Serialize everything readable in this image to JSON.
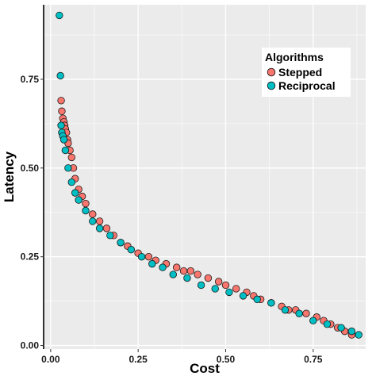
{
  "chart_data": {
    "type": "scatter",
    "xlabel": "Cost",
    "ylabel": "Latency",
    "xlim": [
      -0.02,
      0.9
    ],
    "ylim": [
      -0.01,
      0.96
    ],
    "x_ticks": [
      0.0,
      0.25,
      0.5,
      0.75
    ],
    "x_tick_labels": [
      "0.00",
      "0.25",
      "0.50",
      "0.75"
    ],
    "y_ticks": [
      0.0,
      0.25,
      0.5,
      0.75
    ],
    "y_tick_labels": [
      "0.00",
      "0.25",
      "0.50",
      "0.75"
    ],
    "grid": true,
    "legend": {
      "title": "Algorithms",
      "position": "top-right"
    },
    "series": [
      {
        "name": "Stepped",
        "color": "#F8766D",
        "x": [
          0.03,
          0.032,
          0.035,
          0.038,
          0.04,
          0.042,
          0.045,
          0.048,
          0.05,
          0.055,
          0.06,
          0.065,
          0.07,
          0.08,
          0.09,
          0.1,
          0.12,
          0.14,
          0.16,
          0.18,
          0.2,
          0.22,
          0.25,
          0.28,
          0.3,
          0.33,
          0.36,
          0.38,
          0.4,
          0.42,
          0.45,
          0.48,
          0.5,
          0.53,
          0.56,
          0.58,
          0.6,
          0.63,
          0.66,
          0.68,
          0.7,
          0.73,
          0.76,
          0.78,
          0.8,
          0.82,
          0.84,
          0.86
        ],
        "y": [
          0.69,
          0.66,
          0.64,
          0.63,
          0.62,
          0.61,
          0.6,
          0.58,
          0.57,
          0.55,
          0.53,
          0.5,
          0.47,
          0.44,
          0.42,
          0.4,
          0.37,
          0.35,
          0.33,
          0.31,
          0.29,
          0.28,
          0.26,
          0.25,
          0.24,
          0.23,
          0.22,
          0.21,
          0.21,
          0.2,
          0.19,
          0.18,
          0.17,
          0.16,
          0.15,
          0.14,
          0.13,
          0.12,
          0.11,
          0.1,
          0.1,
          0.09,
          0.08,
          0.07,
          0.06,
          0.05,
          0.04,
          0.03
        ]
      },
      {
        "name": "Reciprocal",
        "color": "#00BFC4",
        "x": [
          0.025,
          0.028,
          0.03,
          0.032,
          0.035,
          0.038,
          0.042,
          0.05,
          0.06,
          0.07,
          0.08,
          0.1,
          0.12,
          0.14,
          0.17,
          0.2,
          0.23,
          0.26,
          0.29,
          0.32,
          0.35,
          0.39,
          0.43,
          0.47,
          0.51,
          0.55,
          0.59,
          0.63,
          0.67,
          0.71,
          0.75,
          0.79,
          0.83,
          0.86,
          0.88
        ],
        "y": [
          0.93,
          0.76,
          0.62,
          0.6,
          0.59,
          0.58,
          0.55,
          0.5,
          0.46,
          0.43,
          0.41,
          0.38,
          0.35,
          0.33,
          0.31,
          0.29,
          0.27,
          0.25,
          0.23,
          0.22,
          0.2,
          0.19,
          0.17,
          0.16,
          0.15,
          0.14,
          0.13,
          0.12,
          0.1,
          0.09,
          0.07,
          0.06,
          0.05,
          0.04,
          0.03
        ]
      }
    ]
  }
}
